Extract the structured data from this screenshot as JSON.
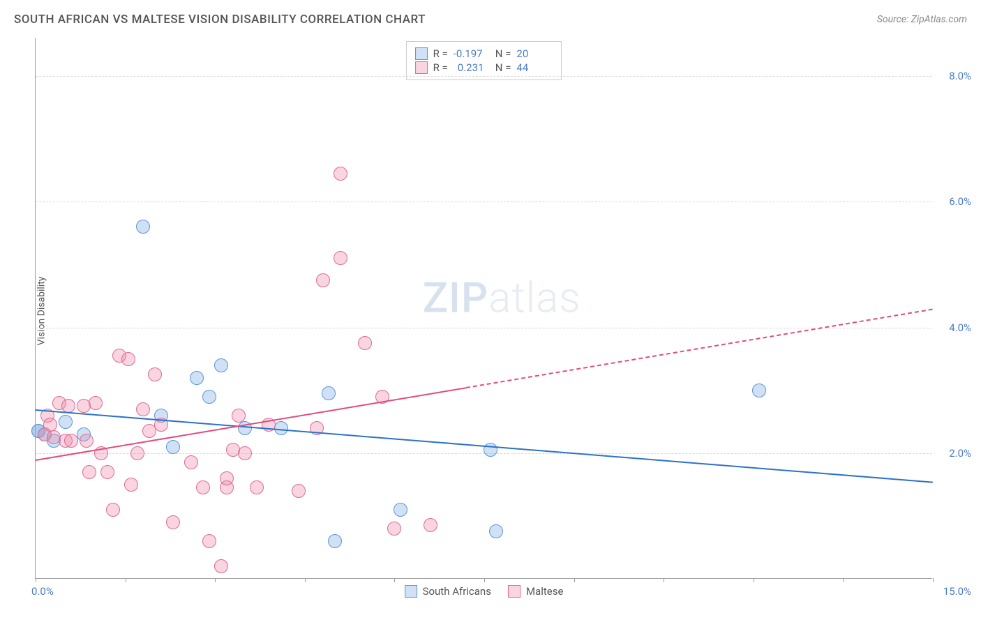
{
  "title": "SOUTH AFRICAN VS MALTESE VISION DISABILITY CORRELATION CHART",
  "source_label": "Source: ZipAtlas.com",
  "watermark": {
    "part1": "ZIP",
    "part2": "atlas"
  },
  "y_axis_label": "Vision Disability",
  "chart": {
    "type": "scatter",
    "xlim": [
      0,
      15
    ],
    "ylim": [
      0,
      8.6
    ],
    "x_ticks": [
      0,
      1.5,
      3,
      4.5,
      6,
      7.5,
      9,
      10.5,
      12,
      13.5,
      15
    ],
    "x_tick_labels": {
      "0": "0.0%",
      "15": "15.0%"
    },
    "y_ticks": [
      2,
      4,
      6,
      8
    ],
    "y_tick_labels": [
      "2.0%",
      "4.0%",
      "6.0%",
      "8.0%"
    ],
    "grid_color": "#d8d8d8",
    "background_color": "#ffffff",
    "axis_color": "#999999",
    "label_color": "#555555",
    "tick_label_color": "#4a7bc8"
  },
  "series": [
    {
      "name": "South Africans",
      "fill": "rgba(120, 170, 225, 0.35)",
      "stroke": "#5a95d6",
      "r_value": "-0.197",
      "n_value": "20",
      "radius": 10,
      "points": [
        [
          0.05,
          2.35
        ],
        [
          0.05,
          2.35
        ],
        [
          0.15,
          2.3
        ],
        [
          0.3,
          2.2
        ],
        [
          0.5,
          2.5
        ],
        [
          0.8,
          2.3
        ],
        [
          1.8,
          5.6
        ],
        [
          2.1,
          2.6
        ],
        [
          2.3,
          2.1
        ],
        [
          2.7,
          3.2
        ],
        [
          2.9,
          2.9
        ],
        [
          3.1,
          3.4
        ],
        [
          3.5,
          2.4
        ],
        [
          4.1,
          2.4
        ],
        [
          4.9,
          2.95
        ],
        [
          5.0,
          0.6
        ],
        [
          6.1,
          1.1
        ],
        [
          7.6,
          2.05
        ],
        [
          7.7,
          0.75
        ],
        [
          12.1,
          3.0
        ]
      ],
      "trend": {
        "x1": 0,
        "y1": 2.7,
        "x2": 15,
        "y2": 1.55,
        "color": "#2b72c9",
        "dashed_from": null
      }
    },
    {
      "name": "Maltese",
      "fill": "rgba(235, 135, 165, 0.35)",
      "stroke": "#e06a92",
      "r_value": "0.231",
      "n_value": "44",
      "radius": 10,
      "points": [
        [
          0.15,
          2.3
        ],
        [
          0.2,
          2.6
        ],
        [
          0.25,
          2.45
        ],
        [
          0.3,
          2.25
        ],
        [
          0.4,
          2.8
        ],
        [
          0.5,
          2.2
        ],
        [
          0.55,
          2.75
        ],
        [
          0.6,
          2.2
        ],
        [
          0.8,
          2.75
        ],
        [
          0.85,
          2.2
        ],
        [
          0.9,
          1.7
        ],
        [
          1.0,
          2.8
        ],
        [
          1.1,
          2.0
        ],
        [
          1.2,
          1.7
        ],
        [
          1.3,
          1.1
        ],
        [
          1.4,
          3.55
        ],
        [
          1.55,
          3.5
        ],
        [
          1.6,
          1.5
        ],
        [
          1.7,
          2.0
        ],
        [
          1.8,
          2.7
        ],
        [
          1.9,
          2.35
        ],
        [
          2.0,
          3.25
        ],
        [
          2.1,
          2.45
        ],
        [
          2.3,
          0.9
        ],
        [
          2.6,
          1.85
        ],
        [
          2.8,
          1.45
        ],
        [
          2.9,
          0.6
        ],
        [
          3.1,
          0.2
        ],
        [
          3.2,
          1.45
        ],
        [
          3.2,
          1.6
        ],
        [
          3.3,
          2.05
        ],
        [
          3.4,
          2.6
        ],
        [
          3.5,
          2.0
        ],
        [
          3.7,
          1.45
        ],
        [
          3.9,
          2.45
        ],
        [
          4.4,
          1.4
        ],
        [
          4.7,
          2.4
        ],
        [
          4.8,
          4.75
        ],
        [
          5.1,
          6.45
        ],
        [
          5.1,
          5.1
        ],
        [
          5.5,
          3.75
        ],
        [
          5.8,
          2.9
        ],
        [
          6.0,
          0.8
        ],
        [
          6.6,
          0.85
        ]
      ],
      "trend": {
        "x1": 0,
        "y1": 1.9,
        "x2": 15,
        "y2": 4.3,
        "color": "#e14b7b",
        "dashed_from": 7.2
      }
    }
  ],
  "legend_bottom_labels": [
    "South Africans",
    "Maltese"
  ]
}
